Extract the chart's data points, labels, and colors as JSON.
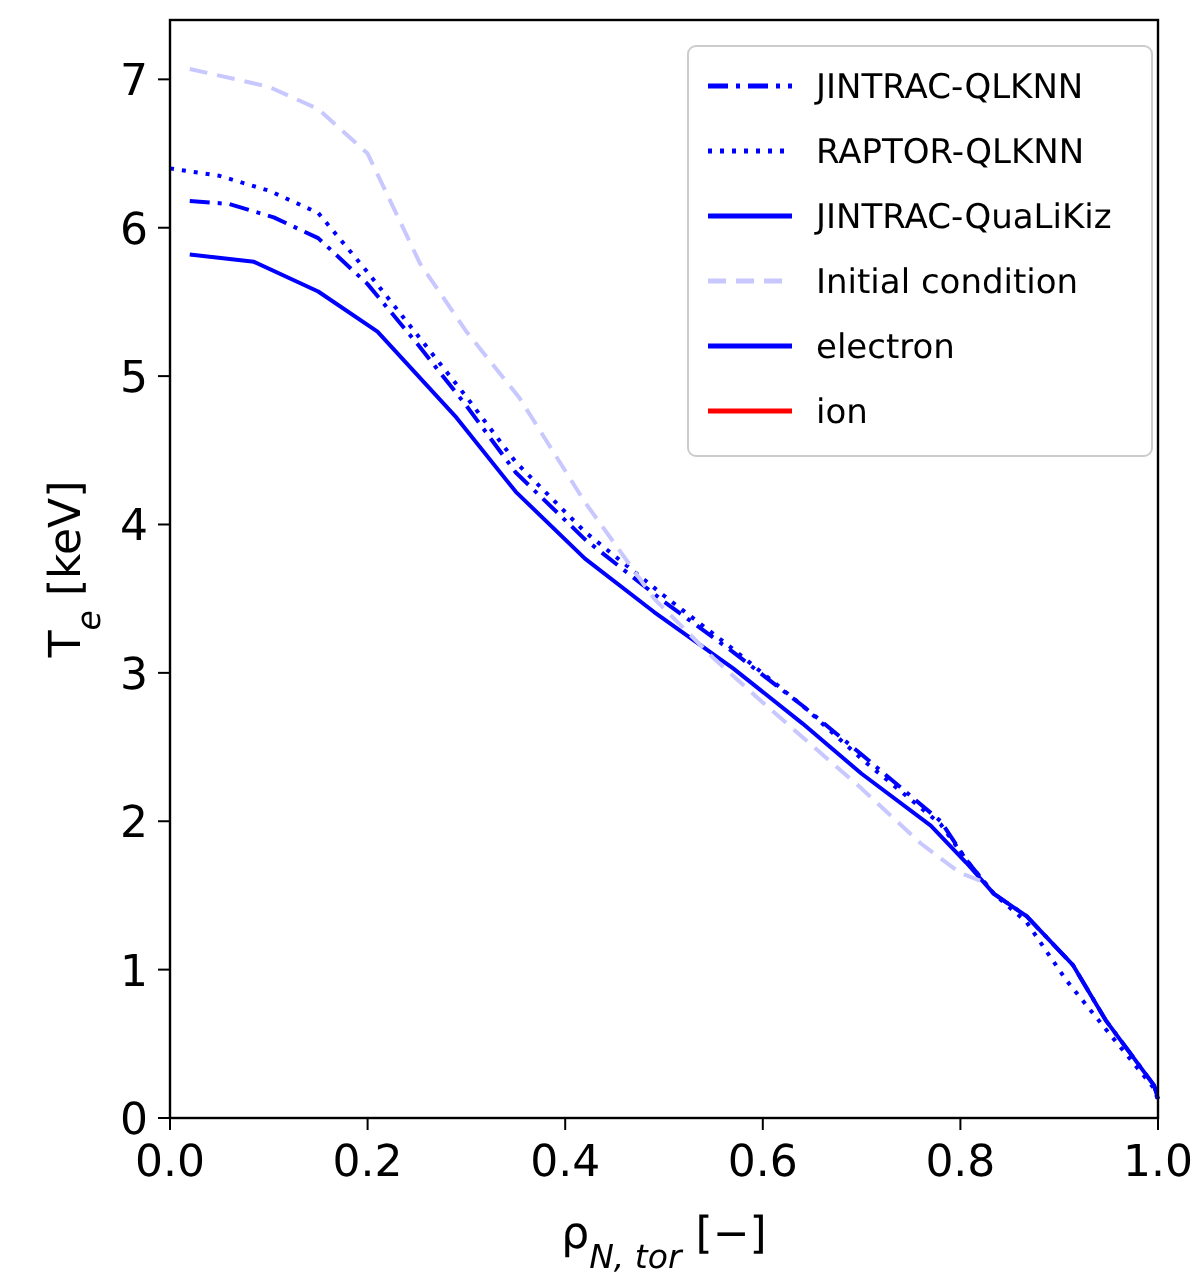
{
  "chart_data": {
    "type": "line",
    "xlabel": "ρ$_{N, tor}$ [−]",
    "ylabel": "T$_{e}$ [keV]",
    "xlim": [
      0,
      1
    ],
    "ylim": [
      0,
      7.4
    ],
    "xticks": [
      {
        "value": 0,
        "label": "0.0"
      },
      0.2,
      0.4,
      0.6,
      0.8,
      {
        "value": 1,
        "label": "1.0"
      }
    ],
    "yticks": [
      0,
      1,
      2,
      3,
      4,
      5,
      6,
      7
    ],
    "legend": "top right",
    "grid": false,
    "series": [
      {
        "name": "JINTRAC-QLKNN",
        "color": "#0000ff",
        "line_style": "dashdot",
        "x": [
          0.02,
          0.06,
          0.105,
          0.15,
          0.2,
          0.25,
          0.3,
          0.35,
          0.42,
          0.5,
          0.57,
          0.64,
          0.7,
          0.78,
          0.806,
          0.834,
          0.867,
          0.914,
          0.947,
          0.996,
          1.0
        ],
        "values": [
          6.18,
          6.16,
          6.07,
          5.93,
          5.62,
          5.22,
          4.8,
          4.35,
          3.9,
          3.48,
          3.14,
          2.78,
          2.45,
          2.0,
          1.74,
          1.51,
          1.36,
          1.03,
          0.66,
          0.22,
          0.13
        ]
      },
      {
        "name": "RAPTOR-QLKNN",
        "color": "#0000ff",
        "line_style": "dotted",
        "x": [
          0.0,
          0.05,
          0.1,
          0.15,
          0.2,
          0.25,
          0.3,
          0.35,
          0.42,
          0.5,
          0.57,
          0.64,
          0.7,
          0.78,
          0.806,
          0.834,
          0.867,
          0.907,
          0.947,
          0.996,
          1.0
        ],
        "values": [
          6.4,
          6.35,
          6.25,
          6.1,
          5.7,
          5.28,
          4.86,
          4.42,
          3.95,
          3.52,
          3.16,
          2.78,
          2.42,
          1.98,
          1.74,
          1.51,
          1.32,
          0.93,
          0.6,
          0.2,
          0.12
        ]
      },
      {
        "name": "JINTRAC-QuaLiKiz",
        "color": "#0000ff",
        "line_style": "solid",
        "x": [
          0.02,
          0.085,
          0.15,
          0.21,
          0.29,
          0.35,
          0.42,
          0.49,
          0.57,
          0.64,
          0.7,
          0.77,
          0.806,
          0.834,
          0.867,
          0.914,
          0.947,
          0.996,
          1.0
        ],
        "values": [
          5.82,
          5.77,
          5.57,
          5.3,
          4.72,
          4.22,
          3.77,
          3.41,
          3.03,
          2.66,
          2.32,
          1.97,
          1.72,
          1.51,
          1.36,
          1.03,
          0.66,
          0.22,
          0.13
        ]
      },
      {
        "name": "Initial condition",
        "color": "#c8c8ff",
        "line_style": "dashed",
        "x": [
          0.02,
          0.1,
          0.15,
          0.2,
          0.253,
          0.3,
          0.354,
          0.42,
          0.49,
          0.55,
          0.6,
          0.7,
          0.76,
          0.8,
          0.82
        ],
        "values": [
          7.07,
          6.95,
          6.8,
          6.5,
          5.76,
          5.3,
          4.85,
          4.15,
          3.5,
          3.1,
          2.8,
          2.22,
          1.85,
          1.65,
          1.6
        ]
      },
      {
        "name": "electron",
        "color": "#0000ff",
        "line_style": "solid"
      },
      {
        "name": "ion",
        "color": "#ff0000",
        "line_style": "solid"
      }
    ]
  }
}
